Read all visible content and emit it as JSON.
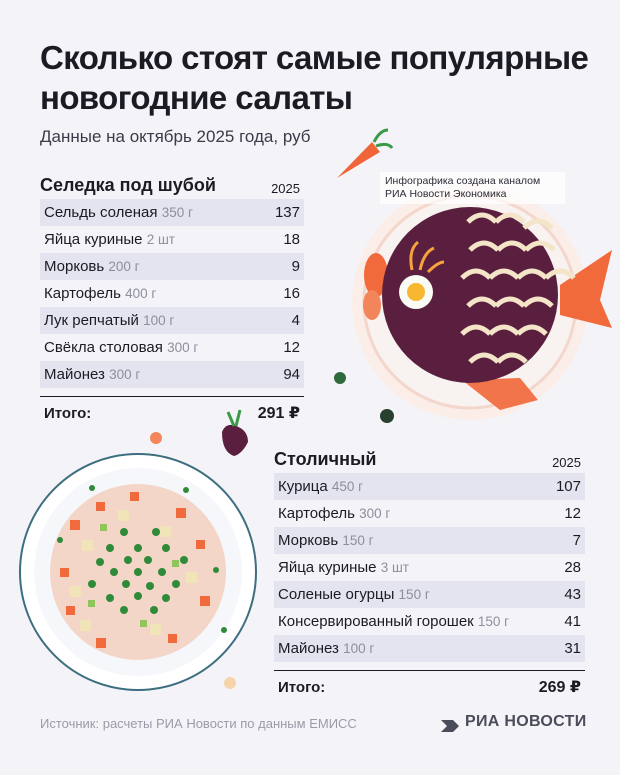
{
  "header": {
    "title": "Сколько стоят самые популярные новогодние салаты",
    "subtitle": "Данные на октябрь 2025 года, руб"
  },
  "credit": {
    "line1": "Инфографика создана каналом",
    "line2": "РИА Новости Экономика"
  },
  "chart_data": [
    {
      "type": "table",
      "title": "Селедка под шубой",
      "column_header": "2025",
      "rows": [
        {
          "name": "Сельдь соленая",
          "qty": "350 г",
          "value": 137
        },
        {
          "name": "Яйца куриные",
          "qty": "2 шт",
          "value": 18
        },
        {
          "name": "Морковь",
          "qty": "200 г",
          "value": 9
        },
        {
          "name": "Картофель",
          "qty": "400 г",
          "value": 16
        },
        {
          "name": "Лук репчатый",
          "qty": "100 г",
          "value": 4
        },
        {
          "name": "Свёкла столовая",
          "qty": "300 г",
          "value": 12
        },
        {
          "name": "Майонез",
          "qty": "300 г",
          "value": 94
        }
      ],
      "total_label": "Итого:",
      "total_value": "291 ₽"
    },
    {
      "type": "table",
      "title": "Столичный",
      "column_header": "2025",
      "rows": [
        {
          "name": "Курица",
          "qty": "450 г",
          "value": 107
        },
        {
          "name": "Картофель",
          "qty": "300 г",
          "value": 12
        },
        {
          "name": "Морковь",
          "qty": "150 г",
          "value": 7
        },
        {
          "name": "Яйца куриные",
          "qty": "3 шт",
          "value": 28
        },
        {
          "name": "Соленые огурцы",
          "qty": "150 г",
          "value": 43
        },
        {
          "name": "Консервированный горошек",
          "qty": "150 г",
          "value": 41
        },
        {
          "name": "Майонез",
          "qty": "100 г",
          "value": 31
        }
      ],
      "total_label": "Итого:",
      "total_value": "269 ₽"
    }
  ],
  "footer": {
    "source": "Источник: расчеты РИА Новости по данным ЕМИСС",
    "logo": "РИА НОВОСТИ"
  },
  "colors": {
    "row_shade": "#e3e4ef",
    "beet": "#5a1f3f",
    "carrot": "#f0643a",
    "pea": "#2f8a3a",
    "plate_rim": "#3d6e80"
  }
}
